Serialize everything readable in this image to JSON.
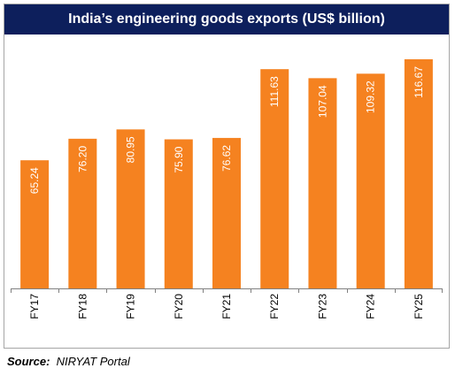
{
  "source": {
    "label": "Source:",
    "text": "NIRYAT Portal"
  },
  "chart_data": {
    "type": "bar",
    "title": "India’s engineering goods exports (US$ billion)",
    "categories": [
      "FY17",
      "FY18",
      "FY19",
      "FY20",
      "FY21",
      "FY22",
      "FY23",
      "FY24",
      "FY25"
    ],
    "values": [
      65.24,
      76.2,
      80.95,
      75.9,
      76.62,
      111.63,
      107.04,
      109.32,
      116.67
    ],
    "value_labels": [
      "65.24",
      "76.20",
      "80.95",
      "75.90",
      "76.62",
      "111.63",
      "107.04",
      "109.32",
      "116.67"
    ],
    "xlabel": "",
    "ylabel": "",
    "ylim": [
      0,
      120
    ],
    "grid": false,
    "legend": "none",
    "bar_color": "#f58220",
    "title_bg_color": "#0d1f5c"
  }
}
